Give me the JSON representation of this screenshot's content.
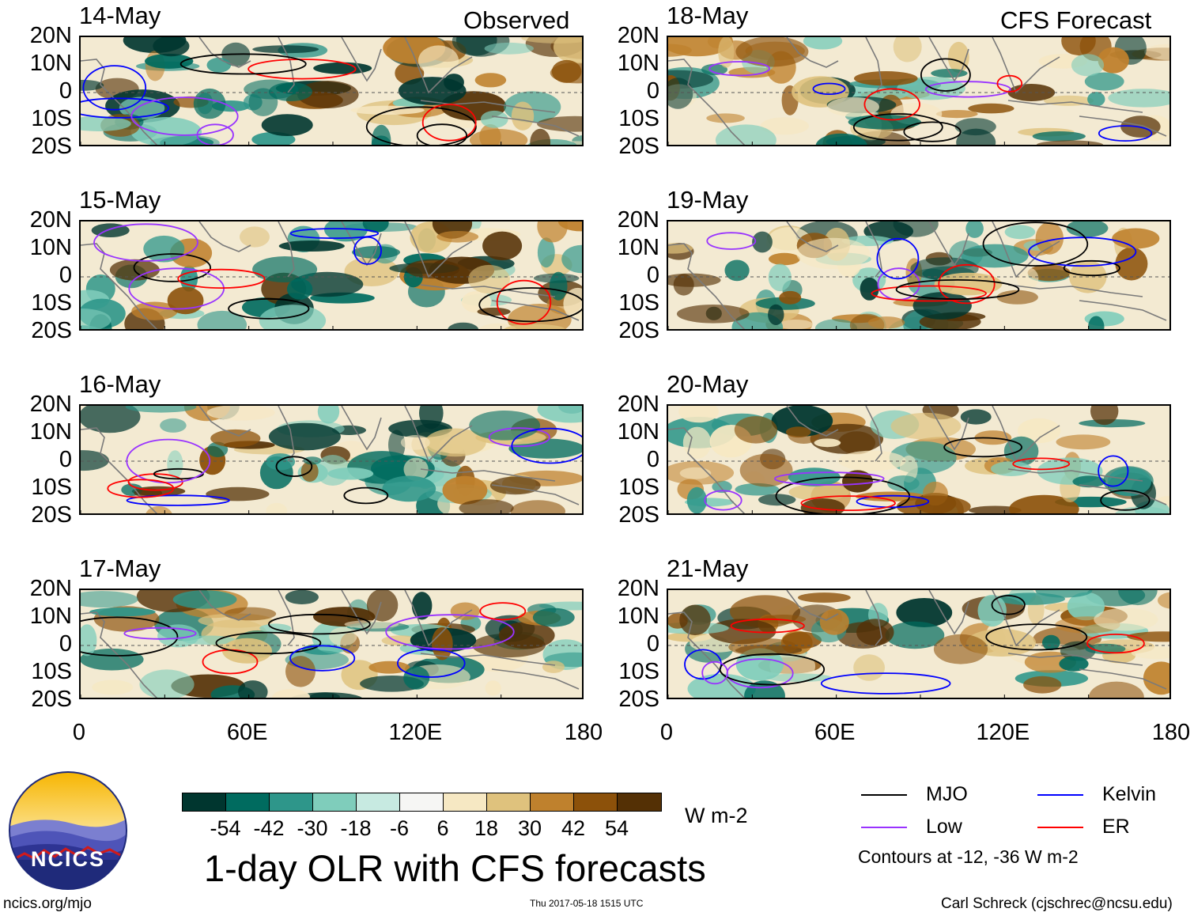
{
  "title": "1-day OLR with CFS forecasts",
  "observed_label": "Observed",
  "forecast_label": "CFS Forecast",
  "lat_labels": [
    "20N",
    "10N",
    "0",
    "10S",
    "20S"
  ],
  "lon_labels": [
    "0",
    "60E",
    "120E",
    "180"
  ],
  "panels": [
    {
      "date": "14-May",
      "group": "observed"
    },
    {
      "date": "15-May",
      "group": "observed"
    },
    {
      "date": "16-May",
      "group": "observed"
    },
    {
      "date": "17-May",
      "group": "observed"
    },
    {
      "date": "18-May",
      "group": "forecast"
    },
    {
      "date": "19-May",
      "group": "forecast"
    },
    {
      "date": "20-May",
      "group": "forecast"
    },
    {
      "date": "21-May",
      "group": "forecast"
    }
  ],
  "colorbar": {
    "colors": [
      "#00362f",
      "#006b5f",
      "#2e968a",
      "#7fcdbb",
      "#c7eae1",
      "#f6f6f4",
      "#f6e8c3",
      "#dfc27d",
      "#bf812d",
      "#8c510a",
      "#543005"
    ],
    "ticks": [
      "-54",
      "-42",
      "-30",
      "-18",
      "-6",
      "6",
      "18",
      "30",
      "42",
      "54"
    ],
    "units": "W m-2"
  },
  "legend": {
    "items": [
      {
        "label": "MJO",
        "color": "#000000"
      },
      {
        "label": "Kelvin",
        "color": "#0000ff"
      },
      {
        "label": "Low",
        "color": "#9933ff"
      },
      {
        "label": "ER",
        "color": "#ff0000"
      }
    ],
    "note": "Contours at -12, -36 W m-2"
  },
  "logo_text": "NCICS",
  "footer": {
    "left": "ncics.org/mjo",
    "center": "Thu 2017-05-18 1515 UTC",
    "right": "Carl Schreck (cjschrec@ncsu.edu)"
  }
}
